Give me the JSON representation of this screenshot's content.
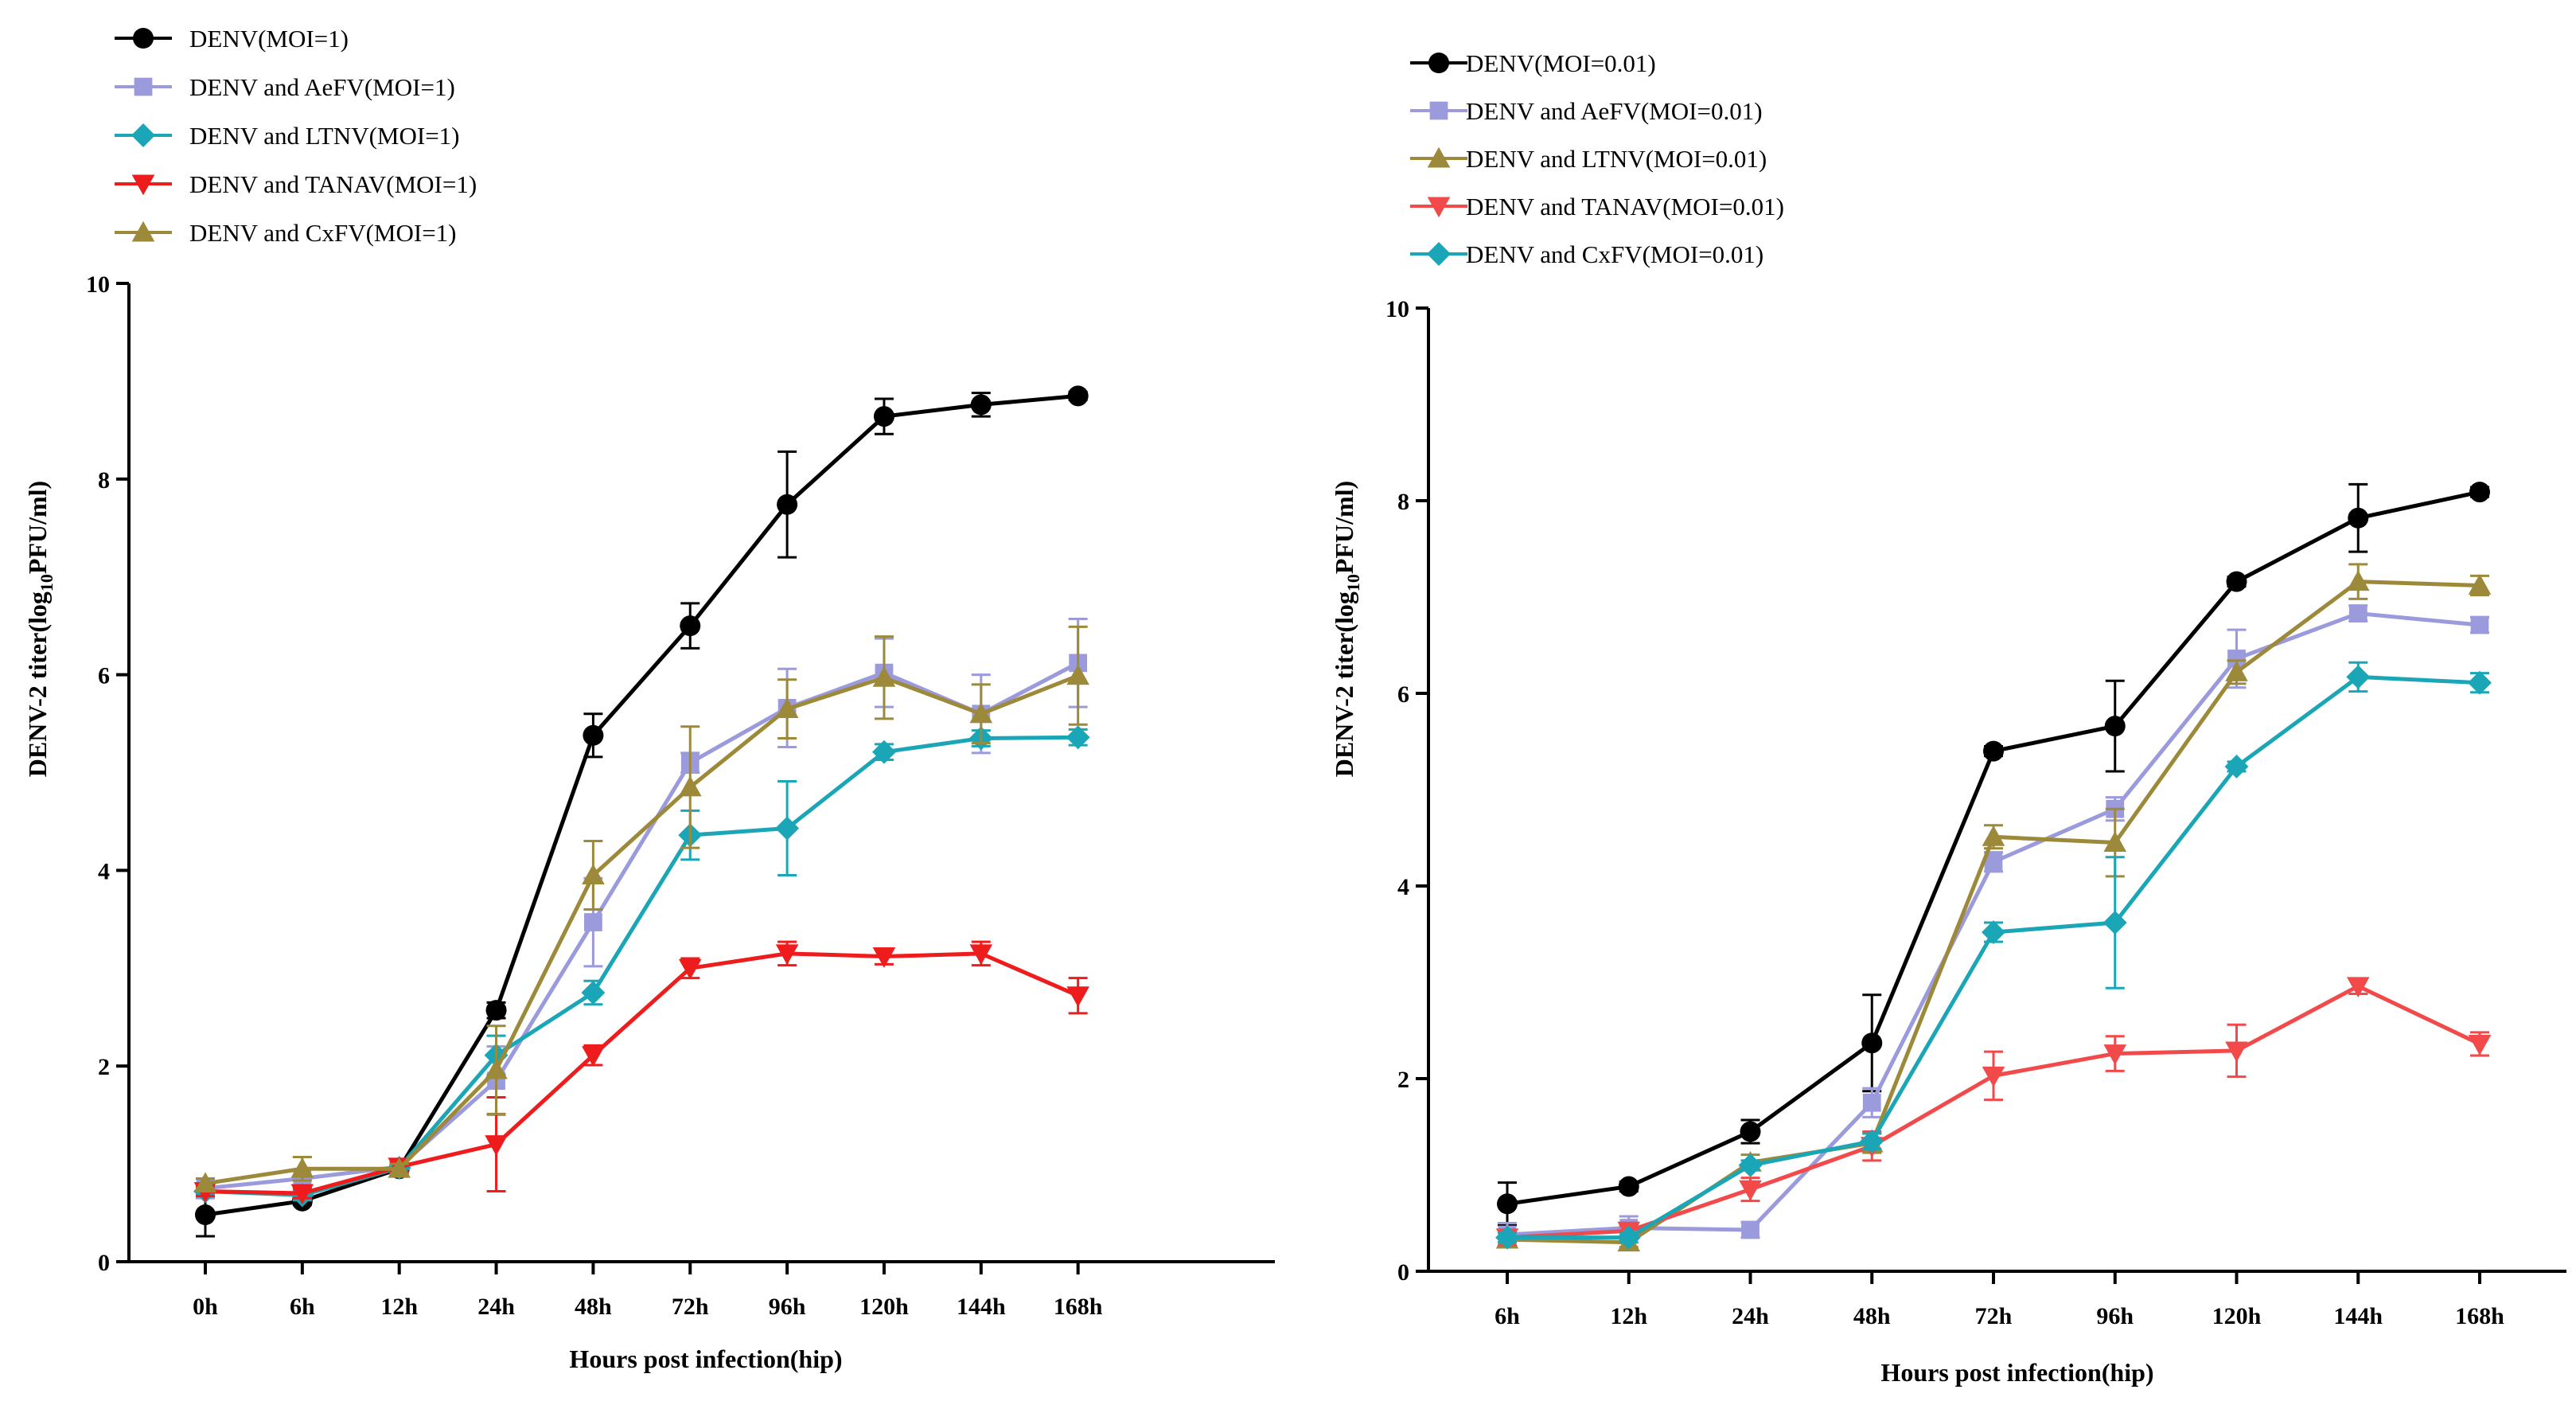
{
  "chart_data": [
    {
      "type": "line",
      "ylabel": "DENV-2 titer(log10PFU/ml)",
      "ylabel_main": "DENV-2 titer(log",
      "ylabel_sub": "10",
      "ylabel_tail": "PFU/ml)",
      "xlabel": "Hours post infection(hip)",
      "ylim": [
        0,
        10
      ],
      "yticks": [
        "0",
        "2",
        "4",
        "6",
        "8",
        "10"
      ],
      "categories": [
        "0h",
        "6h",
        "12h",
        "24h",
        "48h",
        "72h",
        "96h",
        "120h",
        "144h",
        "168h"
      ],
      "legend_position": "top-left",
      "series": [
        {
          "name": "DENV(MOI=1)",
          "color": "#000000",
          "marker": "circle",
          "values": [
            0.48,
            0.62,
            0.95,
            2.57,
            5.38,
            6.5,
            7.74,
            8.64,
            8.76,
            8.85
          ],
          "errors": [
            0.22,
            0.04,
            0.05,
            0.08,
            0.22,
            0.23,
            0.54,
            0.18,
            0.12,
            0.04
          ]
        },
        {
          "name": "DENV and AeFV(MOI=1)",
          "color": "#9a9adc",
          "marker": "square",
          "values": [
            0.75,
            0.85,
            0.97,
            1.85,
            3.47,
            5.1,
            5.66,
            6.02,
            5.6,
            6.12
          ],
          "errors": [
            0.1,
            0.22,
            0.07,
            0.35,
            0.45,
            0.1,
            0.4,
            0.35,
            0.4,
            0.45
          ]
        },
        {
          "name": "DENV and LTNV(MOI=1)",
          "color": "#1aa6b6",
          "marker": "diamond",
          "values": [
            0.72,
            0.68,
            0.96,
            2.11,
            2.75,
            4.36,
            4.43,
            5.21,
            5.35,
            5.36
          ],
          "errors": [
            0.05,
            0.05,
            0.05,
            0.2,
            0.12,
            0.25,
            0.48,
            0.08,
            0.08,
            0.08
          ]
        },
        {
          "name": "DENV and TANAV(MOI=1)",
          "color": "#ee1c1c",
          "marker": "triangle-down",
          "values": [
            0.72,
            0.7,
            0.97,
            1.2,
            2.11,
            3.0,
            3.15,
            3.12,
            3.15,
            2.72
          ],
          "errors": [
            0.05,
            0.05,
            0.05,
            0.48,
            0.1,
            0.1,
            0.12,
            0.08,
            0.12,
            0.18
          ]
        },
        {
          "name": "DENV and CxFV(MOI=1)",
          "color": "#9c8a3a",
          "marker": "triangle-up",
          "values": [
            0.8,
            0.95,
            0.95,
            1.96,
            3.95,
            4.85,
            5.65,
            5.97,
            5.6,
            5.99
          ],
          "errors": [
            0.05,
            0.12,
            0.05,
            0.45,
            0.35,
            0.62,
            0.3,
            0.42,
            0.3,
            0.5
          ]
        }
      ]
    },
    {
      "type": "line",
      "ylabel": "DENV-2 titer(log10PFU/ml)",
      "ylabel_main": "DENV-2 titer(log",
      "ylabel_sub": "10",
      "ylabel_tail": "PFU/ml)",
      "xlabel": "Hours post infection(hip)",
      "ylim": [
        0,
        10
      ],
      "yticks": [
        "0",
        "2",
        "4",
        "6",
        "8",
        "10"
      ],
      "categories": [
        "6h",
        "12h",
        "24h",
        "48h",
        "72h",
        "96h",
        "120h",
        "144h",
        "168h"
      ],
      "legend_position": "top-left",
      "series": [
        {
          "name": "DENV(MOI=0.01)",
          "color": "#000000",
          "marker": "circle",
          "values": [
            0.7,
            0.88,
            1.45,
            2.37,
            5.4,
            5.66,
            7.16,
            7.82,
            8.09
          ],
          "errors": [
            0.22,
            0.05,
            0.12,
            0.5,
            0.05,
            0.47,
            0.05,
            0.35,
            0.05
          ]
        },
        {
          "name": "DENV and AeFV(MOI=0.01)",
          "color": "#9a9adc",
          "marker": "square",
          "values": [
            0.38,
            0.45,
            0.43,
            1.75,
            4.25,
            4.8,
            6.36,
            6.83,
            6.71
          ],
          "errors": [
            0.12,
            0.12,
            0.08,
            0.15,
            0.1,
            0.12,
            0.3,
            0.08,
            0.08
          ]
        },
        {
          "name": "DENV and LTNV(MOI=0.01)",
          "color": "#9c8a3a",
          "marker": "triangle-up",
          "values": [
            0.33,
            0.3,
            1.13,
            1.33,
            4.51,
            4.45,
            6.22,
            7.16,
            7.12
          ],
          "errors": [
            0.08,
            0.05,
            0.08,
            0.1,
            0.12,
            0.35,
            0.12,
            0.18,
            0.1
          ]
        },
        {
          "name": "DENV and TANAV(MOI=0.01)",
          "color": "#f24a4a",
          "marker": "triangle-down",
          "values": [
            0.35,
            0.42,
            0.85,
            1.3,
            2.03,
            2.26,
            2.29,
            2.96,
            2.36
          ],
          "errors": [
            0.08,
            0.05,
            0.12,
            0.15,
            0.25,
            0.18,
            0.27,
            0.08,
            0.12
          ]
        },
        {
          "name": "DENV and CxFV(MOI=0.01)",
          "color": "#1aa6b6",
          "marker": "diamond",
          "values": [
            0.35,
            0.35,
            1.1,
            1.35,
            3.52,
            3.62,
            5.24,
            6.17,
            6.11
          ],
          "errors": [
            0.05,
            0.05,
            0.05,
            0.08,
            0.1,
            0.68,
            0.05,
            0.15,
            0.1
          ]
        }
      ]
    }
  ]
}
